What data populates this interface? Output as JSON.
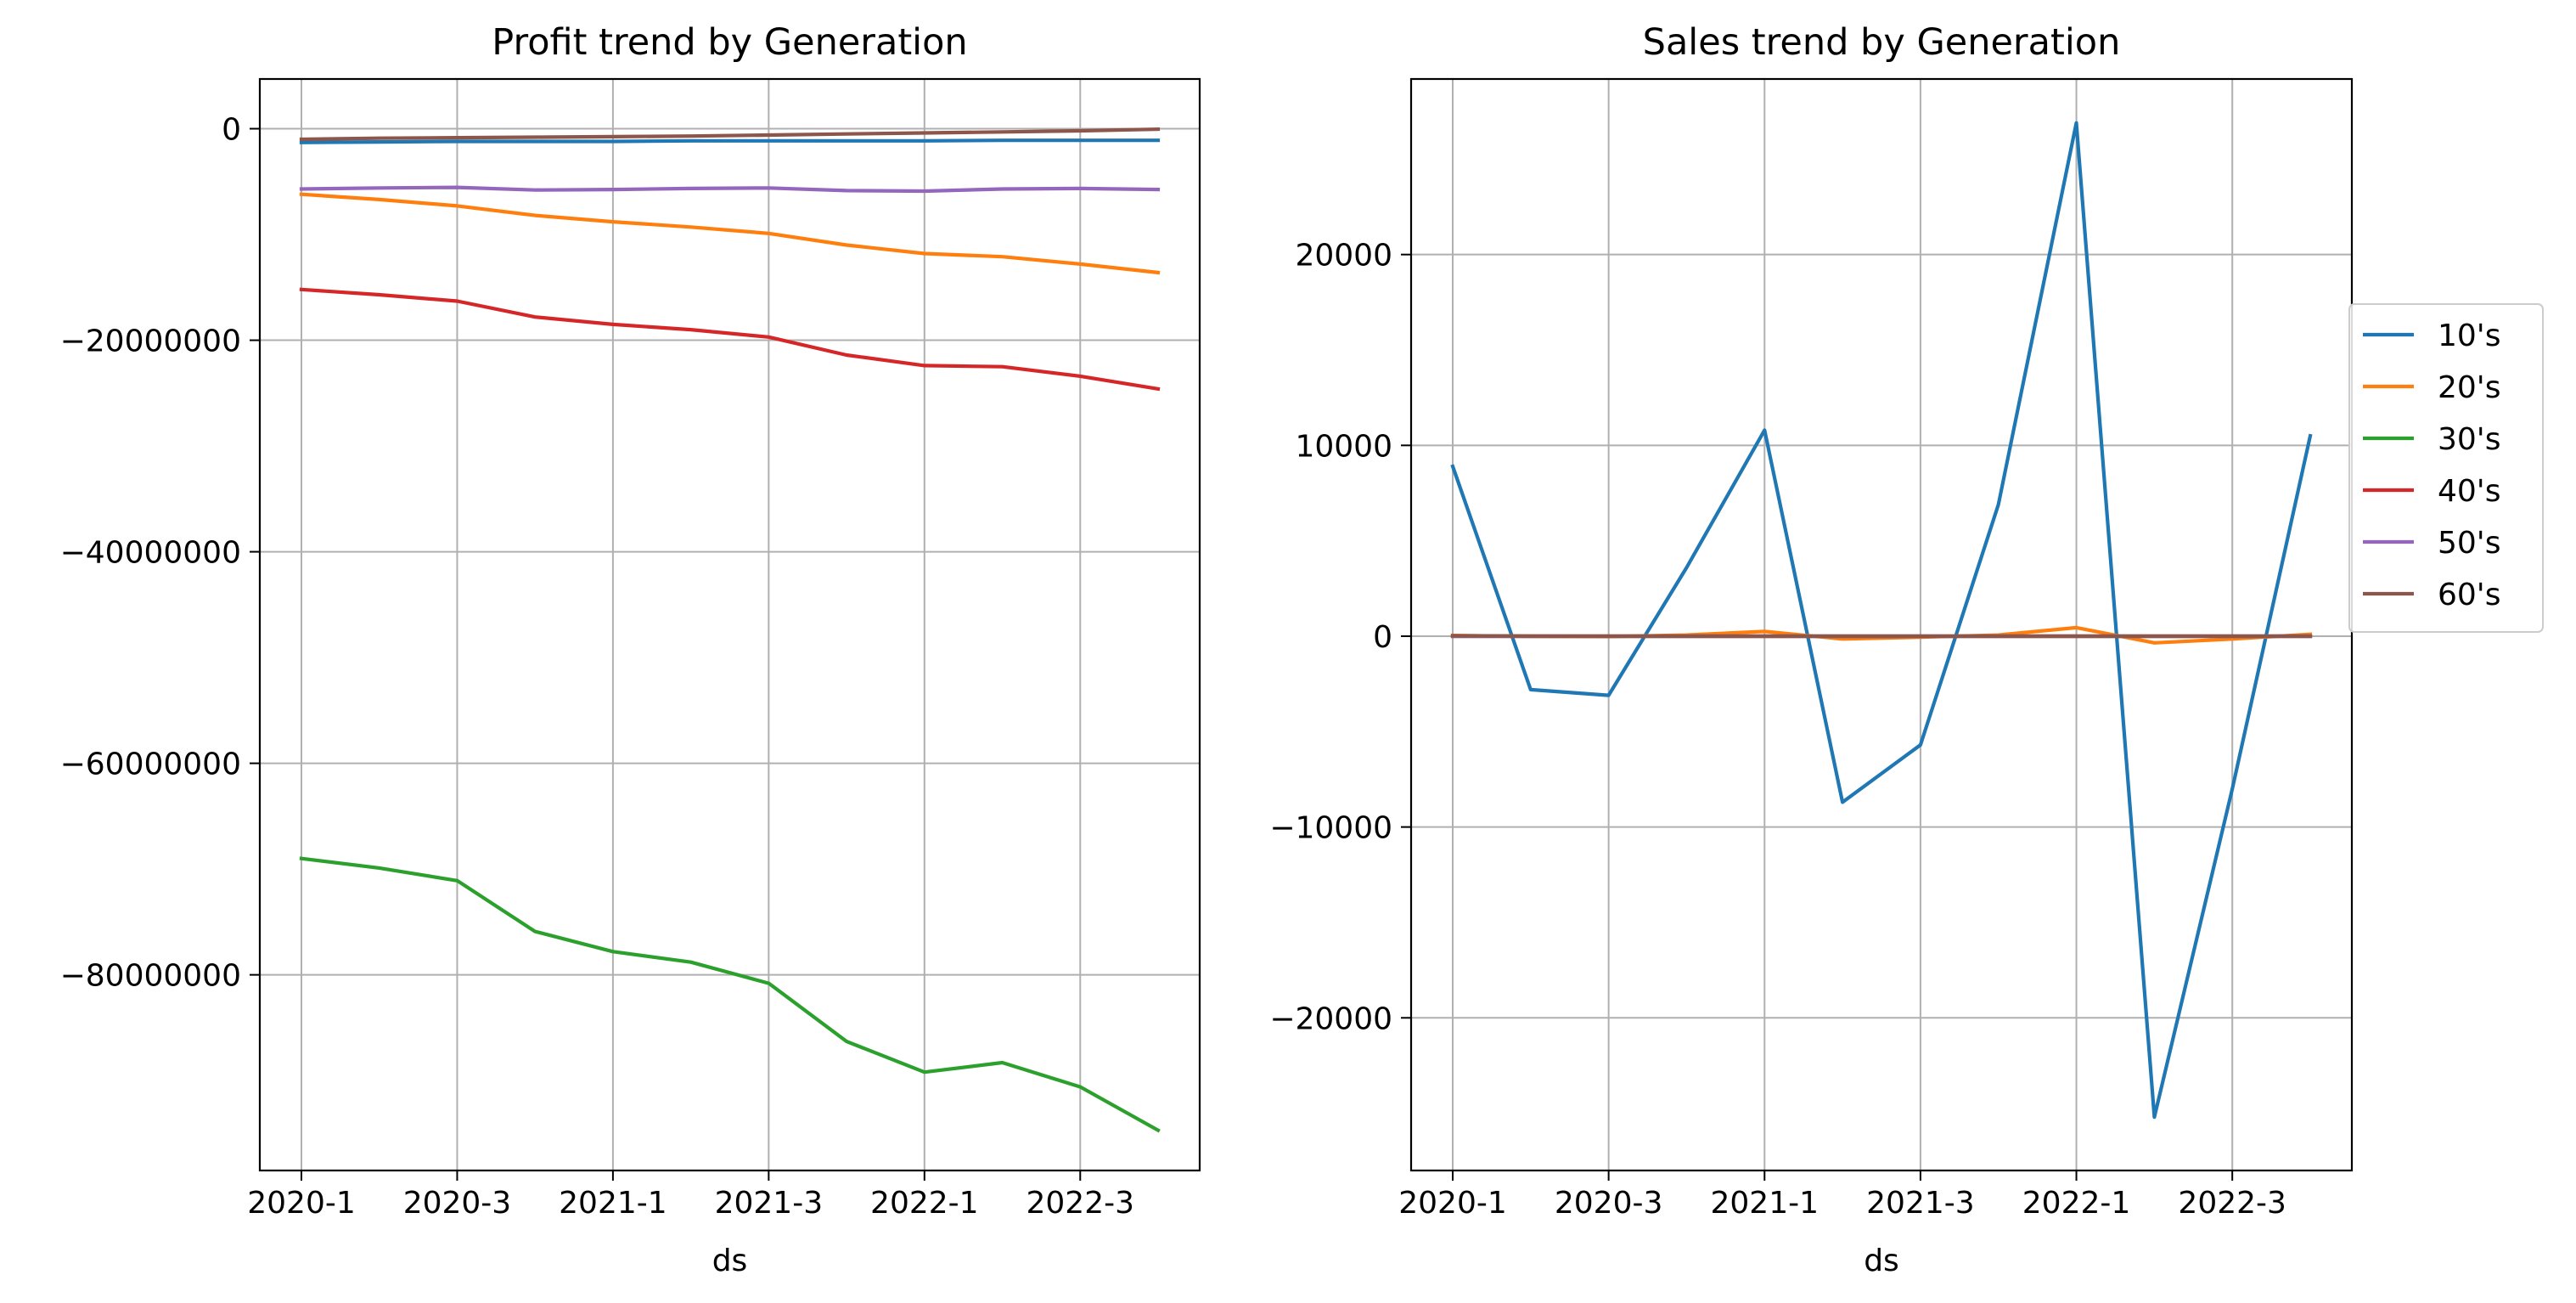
{
  "chart_data": [
    {
      "type": "line",
      "title": "Profit trend by Generation",
      "xlabel": "ds",
      "ylabel": "",
      "x": [
        "2020-1",
        "2020-2",
        "2020-3",
        "2020-4",
        "2021-1",
        "2021-2",
        "2021-3",
        "2021-4",
        "2022-1",
        "2022-2",
        "2022-3",
        "2022-4"
      ],
      "x_tick_labels": [
        "2020-1",
        "2020-3",
        "2021-1",
        "2021-3",
        "2022-1",
        "2022-3"
      ],
      "ylim": [
        -98500000,
        4700000
      ],
      "y_ticks": [
        0,
        -20000000,
        -40000000,
        -60000000,
        -80000000
      ],
      "y_tick_labels": [
        "0",
        "−20000000",
        "−40000000",
        "−60000000",
        "−80000000"
      ],
      "grid": true,
      "series": [
        {
          "name": "10's",
          "color": "#1f77b4",
          "values": [
            -1300000,
            -1250000,
            -1200000,
            -1200000,
            -1200000,
            -1150000,
            -1150000,
            -1150000,
            -1150000,
            -1100000,
            -1100000,
            -1100000
          ]
        },
        {
          "name": "20's",
          "color": "#ff7f0e",
          "values": [
            -6200000,
            -6700000,
            -7300000,
            -8200000,
            -8800000,
            -9300000,
            -9900000,
            -11000000,
            -11800000,
            -12100000,
            -12800000,
            -13600000
          ]
        },
        {
          "name": "30's",
          "color": "#2ca02c",
          "values": [
            -69000000,
            -69900000,
            -71100000,
            -75900000,
            -77800000,
            -78800000,
            -80800000,
            -86300000,
            -89200000,
            -88300000,
            -90600000,
            -94700000
          ]
        },
        {
          "name": "40's",
          "color": "#d62728",
          "values": [
            -15200000,
            -15700000,
            -16300000,
            -17800000,
            -18500000,
            -19000000,
            -19700000,
            -21400000,
            -22400000,
            -22500000,
            -23400000,
            -24600000
          ]
        },
        {
          "name": "50's",
          "color": "#9467bd",
          "values": [
            -5700000,
            -5600000,
            -5550000,
            -5800000,
            -5750000,
            -5650000,
            -5600000,
            -5850000,
            -5900000,
            -5700000,
            -5650000,
            -5750000
          ]
        },
        {
          "name": "60's",
          "color": "#8c564b",
          "values": [
            -1000000,
            -900000,
            -850000,
            -800000,
            -750000,
            -700000,
            -600000,
            -500000,
            -400000,
            -300000,
            -200000,
            -50000
          ]
        }
      ]
    },
    {
      "type": "line",
      "title": "Sales trend by Generation",
      "xlabel": "ds",
      "ylabel": "",
      "x": [
        "2020-1",
        "2020-2",
        "2020-3",
        "2020-4",
        "2021-1",
        "2021-2",
        "2021-3",
        "2021-4",
        "2022-1",
        "2022-2",
        "2022-3",
        "2022-4"
      ],
      "x_tick_labels": [
        "2020-1",
        "2020-3",
        "2021-1",
        "2021-3",
        "2022-1",
        "2022-3"
      ],
      "ylim": [
        -28000,
        29200
      ],
      "y_ticks": [
        20000,
        10000,
        0,
        -10000,
        -20000
      ],
      "y_tick_labels": [
        "20000",
        "10000",
        "0",
        "−10000",
        "−20000"
      ],
      "grid": true,
      "legend_position": "right",
      "series": [
        {
          "name": "10's",
          "color": "#1f77b4",
          "values": [
            8900,
            -2800,
            -3100,
            3600,
            10800,
            -8700,
            -5700,
            6900,
            26900,
            -25200,
            -8000,
            10500
          ]
        },
        {
          "name": "20's",
          "color": "#ff7f0e",
          "values": [
            40,
            -10,
            -20,
            60,
            250,
            -150,
            -50,
            60,
            450,
            -350,
            -150,
            100
          ]
        },
        {
          "name": "30's",
          "color": "#2ca02c",
          "values": [
            0,
            0,
            0,
            0,
            0,
            0,
            0,
            0,
            0,
            0,
            0,
            0
          ]
        },
        {
          "name": "40's",
          "color": "#d62728",
          "values": [
            0,
            0,
            0,
            0,
            0,
            0,
            0,
            0,
            0,
            0,
            0,
            0
          ]
        },
        {
          "name": "50's",
          "color": "#9467bd",
          "values": [
            0,
            0,
            0,
            0,
            0,
            0,
            0,
            0,
            0,
            0,
            0,
            0
          ]
        },
        {
          "name": "60's",
          "color": "#8c564b",
          "values": [
            20,
            10,
            0,
            0,
            0,
            0,
            0,
            0,
            0,
            0,
            0,
            0
          ]
        }
      ]
    }
  ]
}
